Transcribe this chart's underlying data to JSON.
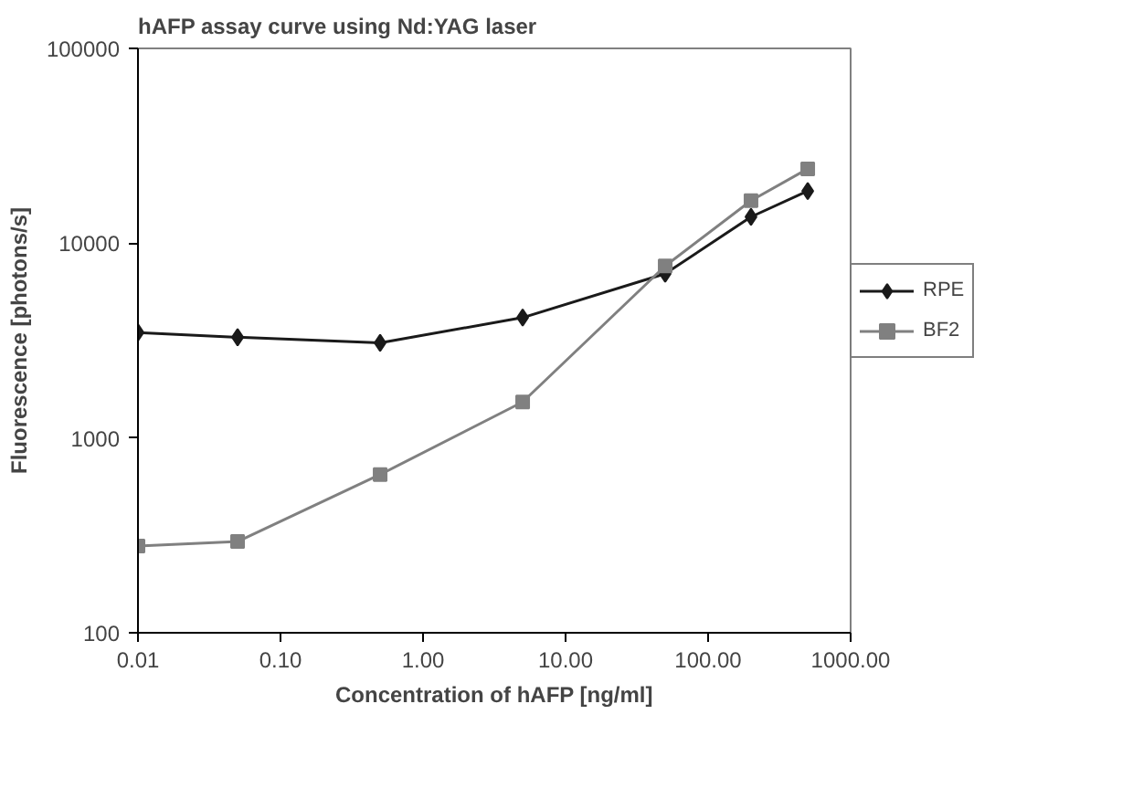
{
  "chart_data": {
    "type": "line",
    "title": "hAFP assay curve using Nd:YAG laser",
    "xlabel": "Concentration of hAFP [ng/ml]",
    "ylabel": "Fluorescence [photons/s]",
    "log": "xy",
    "grid": false,
    "legend": "right",
    "line_style": "solid",
    "x": [
      0.01,
      0.05,
      0.5,
      5,
      50,
      200,
      500
    ],
    "series": [
      {
        "name": "RPE",
        "color": "#1a1a1a",
        "marker": "diamond",
        "values": [
          3480,
          3290,
          3080,
          4150,
          6970,
          13650,
          18520
        ]
      },
      {
        "name": "BF2",
        "color": "#808080",
        "marker": "square",
        "values": [
          279,
          294,
          649,
          1530,
          7640,
          16530,
          24080
        ]
      }
    ],
    "xlim": [
      0.01,
      1000
    ],
    "ylim": [
      100,
      100000
    ],
    "xticks": [
      {
        "value": 0.01,
        "label": "0.01"
      },
      {
        "value": 0.1,
        "label": "0.10"
      },
      {
        "value": 1,
        "label": "1.00"
      },
      {
        "value": 10,
        "label": "10.00"
      },
      {
        "value": 100,
        "label": "100.00"
      },
      {
        "value": 1000,
        "label": "1000.00"
      }
    ],
    "yticks": [
      100,
      1000,
      10000,
      100000
    ]
  }
}
